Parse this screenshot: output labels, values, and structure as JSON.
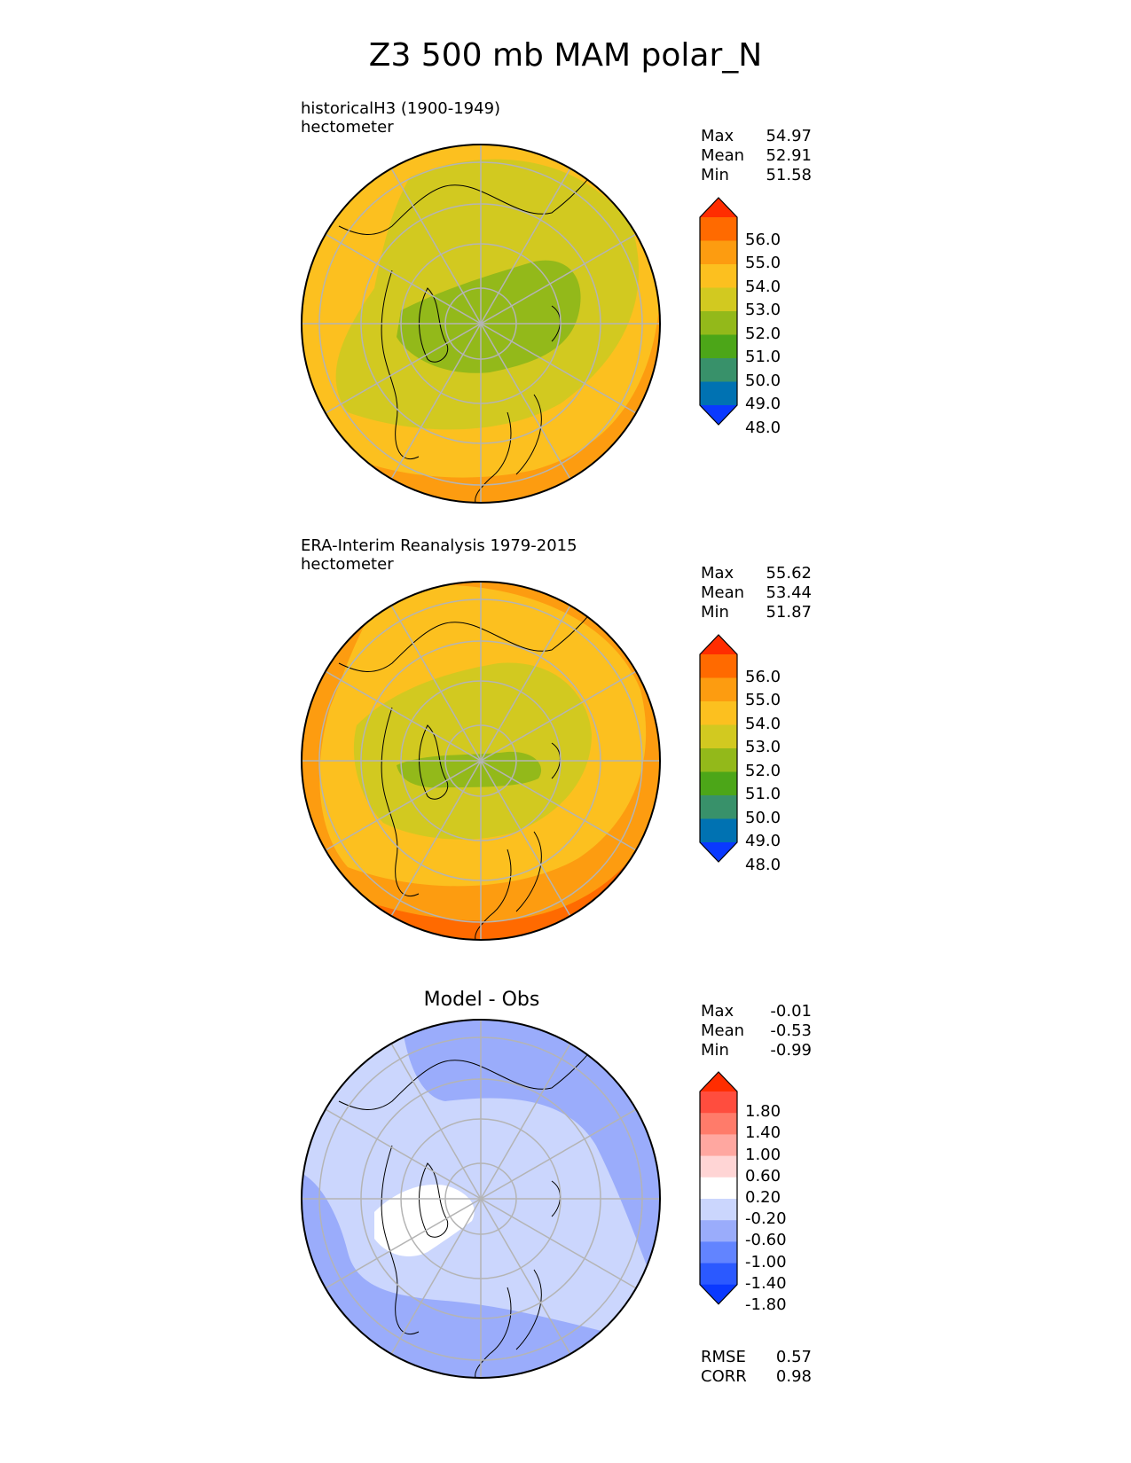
{
  "title": "Z3 500 mb MAM polar_N",
  "colors": {
    "abs_levels": [
      "#0a39ff",
      "#0072b2",
      "#38916a",
      "#4ca618",
      "#93b91a",
      "#d2c920",
      "#fcc01f",
      "#fd9c10",
      "#ff6a00",
      "#ff2d00"
    ],
    "diff_levels": [
      "#0a39ff",
      "#2b59ff",
      "#6284ff",
      "#9aacfb",
      "#cbd6fd",
      "#ffffff",
      "#ffd5d5",
      "#ffa7a0",
      "#ff7b6a",
      "#ff4d3e",
      "#ff2d00"
    ],
    "grid": "#b4b4b4",
    "coast": "#000000"
  },
  "panels": [
    {
      "id": "model",
      "title": "historicalH3 (1900-1949)",
      "units": "hectometer",
      "stats": [
        {
          "label": "Max",
          "value": "54.97"
        },
        {
          "label": "Mean",
          "value": "52.91"
        },
        {
          "label": "Min",
          "value": "51.58"
        }
      ],
      "colorbar_ticks": [
        "56.0",
        "55.0",
        "54.0",
        "53.0",
        "52.0",
        "51.0",
        "50.0",
        "49.0",
        "48.0"
      ]
    },
    {
      "id": "obs",
      "title": "ERA-Interim Reanalysis 1979-2015",
      "units": "hectometer",
      "stats": [
        {
          "label": "Max",
          "value": "55.62"
        },
        {
          "label": "Mean",
          "value": "53.44"
        },
        {
          "label": "Min",
          "value": "51.87"
        }
      ],
      "colorbar_ticks": [
        "56.0",
        "55.0",
        "54.0",
        "53.0",
        "52.0",
        "51.0",
        "50.0",
        "49.0",
        "48.0"
      ]
    },
    {
      "id": "diff",
      "title": "Model - Obs",
      "stats": [
        {
          "label": "Max",
          "value": "-0.01"
        },
        {
          "label": "Mean",
          "value": "-0.53"
        },
        {
          "label": "Min",
          "value": "-0.99"
        }
      ],
      "colorbar_ticks": [
        "1.80",
        "1.40",
        "1.00",
        "0.60",
        "0.20",
        "-0.20",
        "-0.60",
        "-1.00",
        "-1.40",
        "-1.80"
      ],
      "metrics": [
        {
          "label": "RMSE",
          "value": "0.57"
        },
        {
          "label": "CORR",
          "value": "0.98"
        }
      ]
    }
  ]
}
